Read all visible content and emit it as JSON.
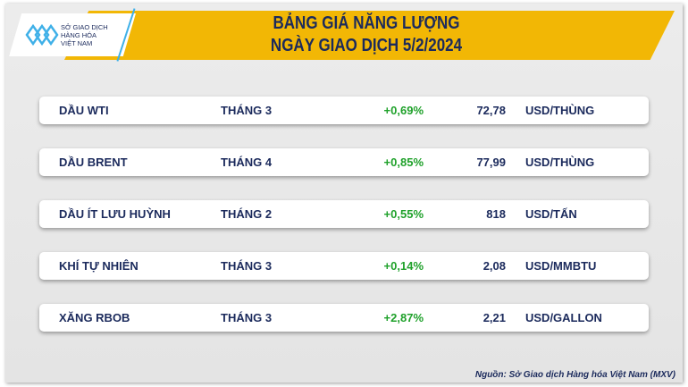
{
  "header": {
    "title_line1": "BẢNG GIÁ NĂNG LƯỢNG",
    "title_line2": "NGÀY GIAO DỊCH 5/2/2024"
  },
  "logo": {
    "line1": "SỞ GIAO DỊCH",
    "line2": "HÀNG HÓA",
    "line3": "VIỆT NAM"
  },
  "colors": {
    "banner": "#f2b705",
    "text": "#1b2a5c",
    "positive": "#1fa12a"
  },
  "rows": [
    {
      "name": "DẦU WTI",
      "month": "THÁNG 3",
      "change": "+0,69%",
      "price": "72,78",
      "unit": "USD/THÙNG"
    },
    {
      "name": "DẦU BRENT",
      "month": "THÁNG 4",
      "change": "+0,85%",
      "price": "77,99",
      "unit": "USD/THÙNG"
    },
    {
      "name": "DẦU ÍT LƯU HUỲNH",
      "month": "THÁNG 2",
      "change": "+0,55%",
      "price": "818",
      "unit": "USD/TẤN"
    },
    {
      "name": "KHÍ TỰ NHIÊN",
      "month": "THÁNG 3",
      "change": "+0,14%",
      "price": "2,08",
      "unit": "USD/MMBTU"
    },
    {
      "name": "XĂNG RBOB",
      "month": "THÁNG 3",
      "change": "+2,87%",
      "price": "2,21",
      "unit": "USD/GALLON"
    }
  ],
  "footer": {
    "source": "Nguồn: Sở Giao dịch Hàng hóa Việt Nam (MXV)"
  }
}
